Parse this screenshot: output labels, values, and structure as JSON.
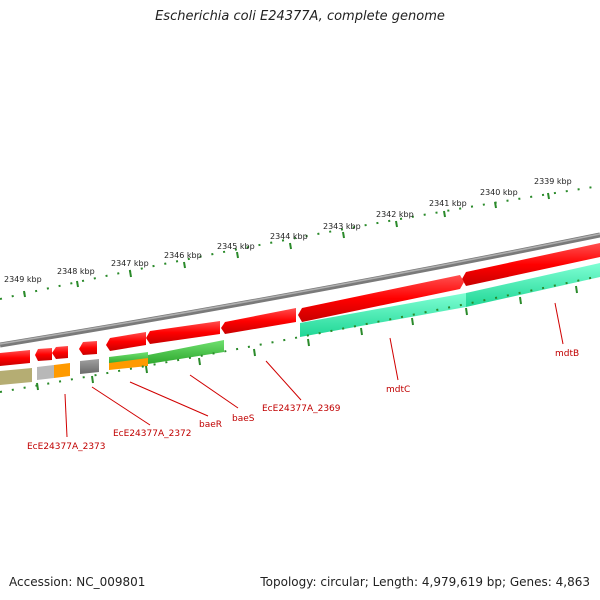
{
  "map": {
    "title": "Escherichia coli E24377A, complete genome",
    "accession_text": "Accession: NC_009801",
    "summary_text": "Topology: circular; Length: 4,979,619 bp; Genes: 4,863",
    "colors": {
      "backbone": "#808080",
      "forward_gene": "#e00000",
      "reverse_gene": "#e00000",
      "cds_teal": "#2ee8a8",
      "cds_green": "#3cbf3c",
      "cds_orange": "#ff9a00",
      "cds_gray": "#6e6e6e",
      "cds_silver": "#b8b8b8",
      "cds_khaki": "#b5ad73",
      "ruler_major": "#2a8a2a",
      "label_line": "#d00000"
    }
  },
  "ruler": {
    "unit": "kbp",
    "ticks": [
      {
        "label": "2339 kbp"
      },
      {
        "label": "2340 kbp"
      },
      {
        "label": "2341 kbp"
      },
      {
        "label": "2342 kbp"
      },
      {
        "label": "2343 kbp"
      },
      {
        "label": "2344 kbp"
      },
      {
        "label": "2345 kbp"
      },
      {
        "label": "2346 kbp"
      },
      {
        "label": "2347 kbp"
      },
      {
        "label": "2348 kbp"
      },
      {
        "label": "2349 kbp"
      }
    ]
  },
  "genes": [
    {
      "label": "mdtB"
    },
    {
      "label": "mdtC"
    },
    {
      "label": "EcE24377A_2369"
    },
    {
      "label": "baeS"
    },
    {
      "label": "baeR"
    },
    {
      "label": "EcE24377A_2372"
    },
    {
      "label": "EcE24377A_2373"
    }
  ]
}
